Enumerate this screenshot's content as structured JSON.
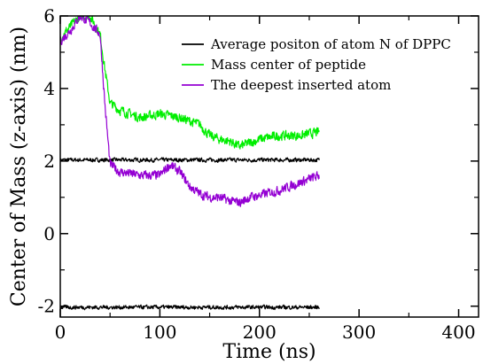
{
  "chart_data": {
    "type": "line",
    "title": "",
    "xlabel": "Time (ns)",
    "ylabel": "Center of Mass (z-axis) (nm)",
    "xlim": [
      0,
      420
    ],
    "ylim": [
      -2.3,
      6
    ],
    "xticks": [
      0,
      100,
      200,
      300,
      400
    ],
    "yticks": [
      -2,
      0,
      2,
      4,
      6
    ],
    "xtick_labels": [
      "0",
      "100",
      "200",
      "300",
      "400"
    ],
    "ytick_labels": [
      "-2",
      "0",
      "2",
      "4",
      "6"
    ],
    "grid": false,
    "legend_position": "top-right",
    "series": [
      {
        "name": "Average positon of atom N of DPPC",
        "color": "#000000",
        "x": [
          0,
          260
        ],
        "y": [
          2.03,
          2.03
        ],
        "noise": 0.05
      },
      {
        "name": "Mass center of peptide",
        "color": "#00ee00",
        "x": [
          0,
          10,
          20,
          30,
          40,
          45,
          50,
          60,
          80,
          100,
          120,
          130,
          140,
          150,
          160,
          170,
          180,
          190,
          200,
          220,
          240,
          260
        ],
        "y": [
          5.4,
          5.7,
          6.0,
          6.0,
          5.5,
          4.5,
          3.6,
          3.4,
          3.2,
          3.3,
          3.2,
          3.1,
          3.0,
          2.7,
          2.6,
          2.55,
          2.4,
          2.5,
          2.6,
          2.7,
          2.7,
          2.8
        ],
        "noise": 0.12
      },
      {
        "name": "The deepest inserted atom",
        "color": "#9400d3",
        "x": [
          0,
          10,
          20,
          30,
          40,
          45,
          50,
          60,
          80,
          100,
          110,
          120,
          130,
          140,
          150,
          160,
          170,
          180,
          190,
          200,
          220,
          240,
          260
        ],
        "y": [
          5.3,
          5.6,
          6.0,
          5.8,
          5.5,
          3.5,
          1.9,
          1.7,
          1.6,
          1.6,
          1.9,
          1.7,
          1.3,
          1.1,
          1.0,
          1.0,
          0.9,
          0.85,
          1.0,
          1.05,
          1.2,
          1.4,
          1.6
        ],
        "noise": 0.12
      },
      {
        "name": "",
        "color": "#000000",
        "x": [
          0,
          260
        ],
        "y": [
          -2.03,
          -2.03
        ],
        "noise": 0.05
      }
    ]
  }
}
